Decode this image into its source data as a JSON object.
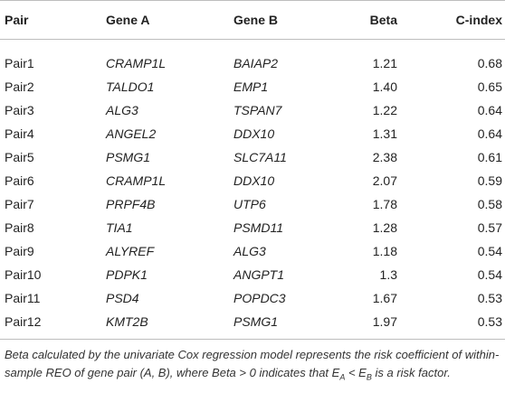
{
  "table": {
    "headers": {
      "pair": "Pair",
      "gene_a": "Gene A",
      "gene_b": "Gene B",
      "beta": "Beta",
      "c_index": "C-index"
    },
    "rows": [
      {
        "pair": "Pair1",
        "gene_a": "CRAMP1L",
        "gene_b": "BAIAP2",
        "beta": "1.21",
        "c_index": "0.68"
      },
      {
        "pair": "Pair2",
        "gene_a": "TALDO1",
        "gene_b": "EMP1",
        "beta": "1.40",
        "c_index": "0.65"
      },
      {
        "pair": "Pair3",
        "gene_a": "ALG3",
        "gene_b": "TSPAN7",
        "beta": "1.22",
        "c_index": "0.64"
      },
      {
        "pair": "Pair4",
        "gene_a": "ANGEL2",
        "gene_b": "DDX10",
        "beta": "1.31",
        "c_index": "0.64"
      },
      {
        "pair": "Pair5",
        "gene_a": "PSMG1",
        "gene_b": "SLC7A11",
        "beta": "2.38",
        "c_index": "0.61"
      },
      {
        "pair": "Pair6",
        "gene_a": "CRAMP1L",
        "gene_b": "DDX10",
        "beta": "2.07",
        "c_index": "0.59"
      },
      {
        "pair": "Pair7",
        "gene_a": "PRPF4B",
        "gene_b": "UTP6",
        "beta": "1.78",
        "c_index": "0.58"
      },
      {
        "pair": "Pair8",
        "gene_a": "TIA1",
        "gene_b": "PSMD11",
        "beta": "1.28",
        "c_index": "0.57"
      },
      {
        "pair": "Pair9",
        "gene_a": "ALYREF",
        "gene_b": "ALG3",
        "beta": "1.18",
        "c_index": "0.54"
      },
      {
        "pair": "Pair10",
        "gene_a": "PDPK1",
        "gene_b": "ANGPT1",
        "beta": "1.3",
        "c_index": "0.54"
      },
      {
        "pair": "Pair11",
        "gene_a": "PSD4",
        "gene_b": "POPDC3",
        "beta": "1.67",
        "c_index": "0.53"
      },
      {
        "pair": "Pair12",
        "gene_a": "KMT2B",
        "gene_b": "PSMG1",
        "beta": "1.97",
        "c_index": "0.53"
      }
    ]
  },
  "footnote": {
    "text_1": "Beta calculated by the univariate Cox regression model represents the risk coefficient of within-sample REO of gene pair (A, B), where Beta > 0 indicates that E",
    "sub_a": "A",
    "text_2": " < E",
    "sub_b": "B",
    "text_3": " is a risk factor."
  }
}
